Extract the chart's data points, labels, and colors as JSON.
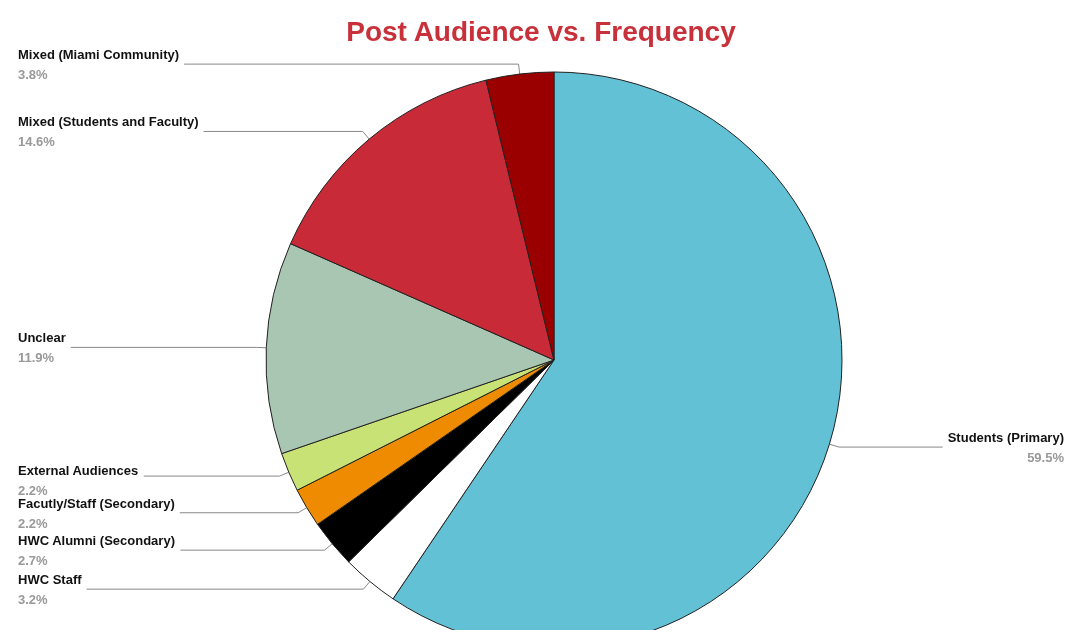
{
  "chart_data": {
    "type": "pie",
    "title": "Post Audience vs. Frequency",
    "categories": [
      "Students (Primary)",
      "HWC Staff",
      "HWC Alumni (Secondary)",
      "Facutly/Staff (Secondary)",
      "External Audiences",
      "Unclear",
      "Mixed (Students and Faculty)",
      "Mixed (Miami Community)"
    ],
    "values": [
      59.5,
      3.2,
      2.7,
      2.2,
      2.2,
      11.9,
      14.6,
      3.8
    ],
    "value_labels": [
      "59.5%",
      "3.2%",
      "2.7%",
      "2.2%",
      "2.2%",
      "11.9%",
      "14.6%",
      "3.8%"
    ],
    "colors": [
      "#63c1d6",
      "#ffffff",
      "#000000",
      "#ee8b00",
      "#c9e275",
      "#a9c6b3",
      "#c92a37",
      "#9b0000"
    ]
  }
}
